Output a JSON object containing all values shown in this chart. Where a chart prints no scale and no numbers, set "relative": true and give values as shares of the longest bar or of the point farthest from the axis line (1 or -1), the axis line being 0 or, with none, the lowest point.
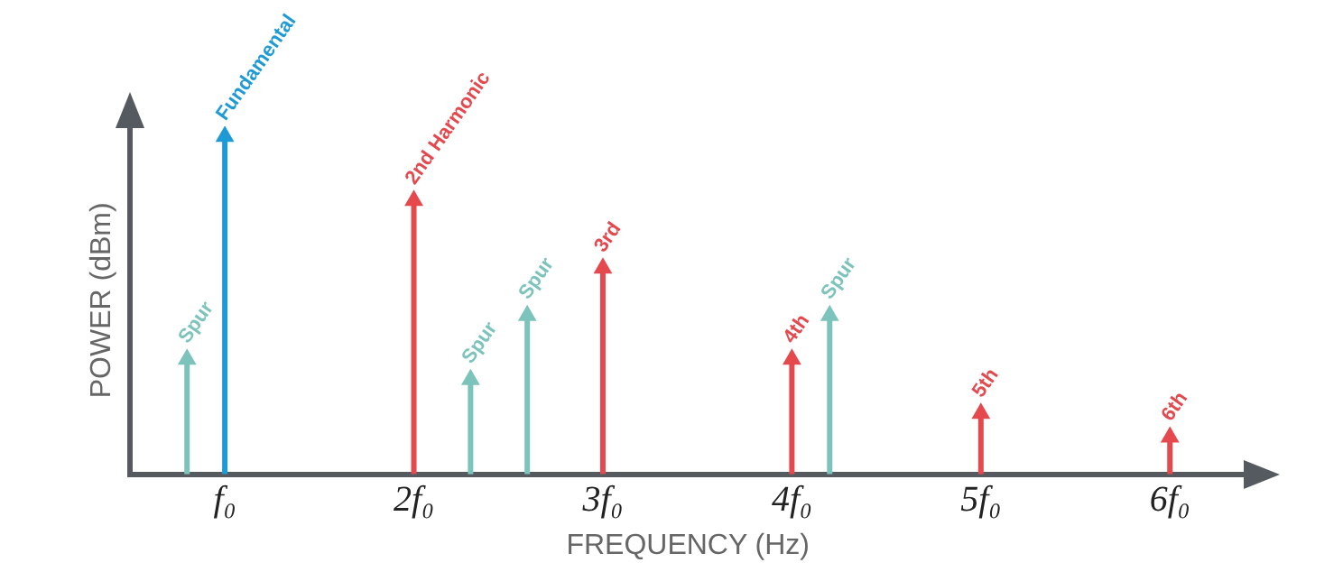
{
  "chart_data": {
    "type": "lollipop",
    "marker": "triangle",
    "relative": true,
    "grid": false,
    "legend": false,
    "xlabel": "FREQUENCY (Hz)",
    "ylabel": "POWER (dBm)",
    "xlim": [
      0.5,
      6.4
    ],
    "xticks": [
      {
        "value": 1,
        "label": "f₀"
      },
      {
        "value": 2,
        "label": "2f₀"
      },
      {
        "value": 3,
        "label": "3f₀"
      },
      {
        "value": 4,
        "label": "4f₀"
      },
      {
        "value": 5,
        "label": "5f₀"
      },
      {
        "value": 6,
        "label": "6f₀"
      }
    ],
    "series": [
      {
        "color": "#1e9ad6",
        "x": [
          1
        ],
        "values": [
          1
        ]
      },
      {
        "color": "#e5484d",
        "x": [
          2,
          3,
          4,
          5,
          6
        ],
        "values": [
          0.81,
          0.61,
          0.34,
          0.18,
          0.11
        ]
      },
      {
        "color": "#7cc4bb",
        "x": [
          0.8,
          2.3,
          2.6,
          4.2
        ],
        "values": [
          0.34,
          0.28,
          0.47,
          0.47
        ]
      }
    ],
    "annotations": [
      {
        "text": "Fundamental",
        "x": 1,
        "y": 1
      },
      {
        "text": "2nd Harmonic",
        "x": 2,
        "y": 0.81
      },
      {
        "text": "3rd",
        "x": 3,
        "y": 0.61
      },
      {
        "text": "4th",
        "x": 4,
        "y": 0.34
      },
      {
        "text": "5th",
        "x": 5,
        "y": 0.18
      },
      {
        "text": "6th",
        "x": 6,
        "y": 0.11
      },
      {
        "text": "Spur",
        "x": 0.8,
        "y": 0.34
      },
      {
        "text": "Spur",
        "x": 2.3,
        "y": 0.28
      },
      {
        "text": "Spur",
        "x": 2.6,
        "y": 0.47
      },
      {
        "text": "Spur",
        "x": 4.2,
        "y": 0.47
      }
    ]
  }
}
